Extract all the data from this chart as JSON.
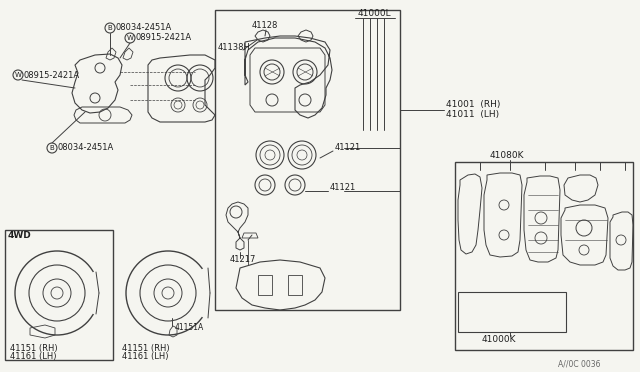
{
  "bg_color": "#f5f5f0",
  "line_color": "#404040",
  "text_color": "#202020",
  "watermark": "A//0C 0036",
  "labels": {
    "B08034_top": "08034-2451A",
    "W08915_top": "08915-2421A",
    "W08915_left": "08915-2421A",
    "B08034_bottom": "08034-2451A",
    "label_41128": "41128",
    "label_41138H": "41138H",
    "label_41000L": "41000L",
    "label_41121_top": "41121",
    "label_41121_bot": "41121",
    "label_41217": "41217",
    "label_41001": "41001  (RH)",
    "label_41011": "41011  (LH)",
    "label_4WD": "4WD",
    "label_41151_lh1_a": "41151 (RH)",
    "label_41161_lh1_a": "41161 (LH)",
    "label_41151_lh2_a": "41151 (RH)",
    "label_41161_lh2_a": "41161 (LH)",
    "label_41151A": "41151A",
    "label_41080K": "41080K",
    "label_41000K": "41000K"
  },
  "figsize": [
    6.4,
    3.72
  ],
  "dpi": 100
}
